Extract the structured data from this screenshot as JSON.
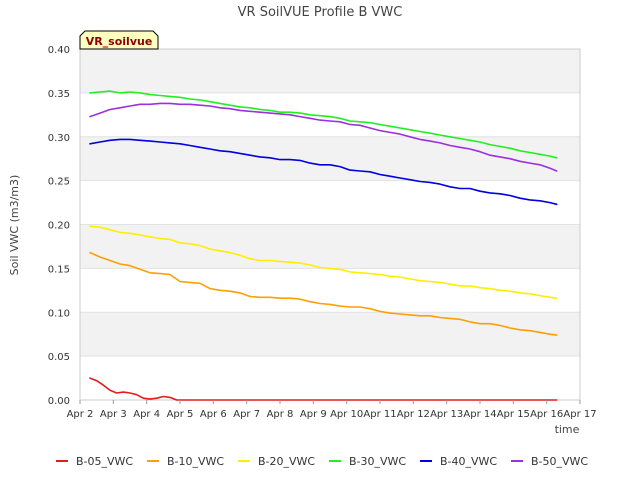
{
  "chart_data": {
    "type": "line",
    "title": "VR SoilVUE Profile B VWC",
    "xlabel": "time",
    "ylabel": "Soil VWC (m3/m3)",
    "badge": "VR_soilvue",
    "badge_bg": "#ffffc0",
    "badge_fg": "#8b0000",
    "x_tick_labels": [
      "Apr 2",
      "Apr 3",
      "Apr 4",
      "Apr 5",
      "Apr 6",
      "Apr 7",
      "Apr 8",
      "Apr 9",
      "Apr 10",
      "Apr 11",
      "Apr 12",
      "Apr 13",
      "Apr 14",
      "Apr 15",
      "Apr 16",
      "Apr 17"
    ],
    "xlim": [
      2,
      17
    ],
    "ylim": [
      0,
      0.4
    ],
    "y_ticks": [
      0.0,
      0.05,
      0.1,
      0.15,
      0.2,
      0.25,
      0.3,
      0.35,
      0.4
    ],
    "y_tick_labels": [
      "0.00",
      "0.05",
      "0.10",
      "0.15",
      "0.20",
      "0.25",
      "0.30",
      "0.35",
      "0.40"
    ],
    "grid": true,
    "legend_position": "bottom",
    "series": [
      {
        "name": "B-05_VWC",
        "color": "#e41a1c",
        "x": [
          2.3,
          2.5,
          2.7,
          2.9,
          3.1,
          3.3,
          3.5,
          3.7,
          3.9,
          4.1,
          4.3,
          4.5,
          4.7,
          4.9,
          5.1,
          5.3,
          5.5,
          5.7,
          6,
          8,
          10,
          12,
          14,
          16.3
        ],
        "y": [
          0.025,
          0.022,
          0.017,
          0.011,
          0.008,
          0.009,
          0.008,
          0.006,
          0.002,
          0.001,
          0.002,
          0.004,
          0.003,
          0.0,
          0,
          0,
          0,
          0,
          0,
          0,
          0,
          0,
          0,
          0
        ]
      },
      {
        "name": "B-10_VWC",
        "color": "#ff9f00",
        "x": [
          2.3,
          2.6,
          2.9,
          3.2,
          3.5,
          3.8,
          4.1,
          4.4,
          4.7,
          5.0,
          5.3,
          5.6,
          5.9,
          6.2,
          6.5,
          6.8,
          7.1,
          7.4,
          7.7,
          8.0,
          8.3,
          8.6,
          8.9,
          9.2,
          9.5,
          9.8,
          10.1,
          10.4,
          10.7,
          11.0,
          11.3,
          11.6,
          11.9,
          12.2,
          12.5,
          12.8,
          13.1,
          13.4,
          13.7,
          14.0,
          14.3,
          14.6,
          14.9,
          15.2,
          15.5,
          15.8,
          16.1,
          16.3
        ],
        "y": [
          0.168,
          0.163,
          0.159,
          0.155,
          0.153,
          0.149,
          0.145,
          0.144,
          0.143,
          0.135,
          0.134,
          0.133,
          0.127,
          0.125,
          0.124,
          0.122,
          0.118,
          0.117,
          0.117,
          0.116,
          0.116,
          0.115,
          0.112,
          0.11,
          0.109,
          0.107,
          0.106,
          0.106,
          0.104,
          0.101,
          0.099,
          0.098,
          0.097,
          0.096,
          0.096,
          0.094,
          0.093,
          0.092,
          0.089,
          0.087,
          0.087,
          0.085,
          0.082,
          0.08,
          0.079,
          0.077,
          0.075,
          0.074
        ]
      },
      {
        "name": "B-20_VWC",
        "color": "#ffee00",
        "x": [
          2.3,
          2.6,
          2.9,
          3.2,
          3.5,
          3.8,
          4.1,
          4.4,
          4.7,
          5.0,
          5.3,
          5.6,
          5.9,
          6.2,
          6.5,
          6.8,
          7.1,
          7.4,
          7.7,
          8.0,
          8.3,
          8.6,
          8.9,
          9.2,
          9.5,
          9.8,
          10.1,
          10.4,
          10.7,
          11.0,
          11.3,
          11.6,
          11.9,
          12.2,
          12.5,
          12.8,
          13.1,
          13.4,
          13.7,
          14.0,
          14.3,
          14.6,
          14.9,
          15.2,
          15.5,
          15.8,
          16.1,
          16.3
        ],
        "y": [
          0.198,
          0.197,
          0.194,
          0.191,
          0.19,
          0.188,
          0.186,
          0.184,
          0.183,
          0.179,
          0.178,
          0.176,
          0.172,
          0.17,
          0.168,
          0.165,
          0.161,
          0.159,
          0.159,
          0.158,
          0.157,
          0.156,
          0.154,
          0.151,
          0.15,
          0.149,
          0.146,
          0.145,
          0.144,
          0.143,
          0.141,
          0.14,
          0.138,
          0.136,
          0.135,
          0.134,
          0.132,
          0.13,
          0.13,
          0.128,
          0.127,
          0.125,
          0.124,
          0.122,
          0.121,
          0.119,
          0.117,
          0.116
        ]
      },
      {
        "name": "B-30_VWC",
        "color": "#22ee22",
        "x": [
          2.3,
          2.6,
          2.9,
          3.2,
          3.5,
          3.8,
          4.1,
          4.4,
          4.7,
          5.0,
          5.3,
          5.6,
          5.9,
          6.2,
          6.5,
          6.8,
          7.1,
          7.4,
          7.7,
          8.0,
          8.3,
          8.6,
          8.9,
          9.2,
          9.5,
          9.8,
          10.1,
          10.4,
          10.7,
          11.0,
          11.3,
          11.6,
          11.9,
          12.2,
          12.5,
          12.8,
          13.1,
          13.4,
          13.7,
          14.0,
          14.3,
          14.6,
          14.9,
          15.2,
          15.5,
          15.8,
          16.1,
          16.3
        ],
        "y": [
          0.35,
          0.351,
          0.352,
          0.35,
          0.351,
          0.35,
          0.348,
          0.347,
          0.346,
          0.345,
          0.343,
          0.342,
          0.34,
          0.338,
          0.336,
          0.334,
          0.333,
          0.331,
          0.33,
          0.328,
          0.328,
          0.327,
          0.325,
          0.324,
          0.323,
          0.321,
          0.318,
          0.317,
          0.316,
          0.314,
          0.312,
          0.31,
          0.308,
          0.306,
          0.304,
          0.302,
          0.3,
          0.298,
          0.296,
          0.294,
          0.291,
          0.289,
          0.287,
          0.284,
          0.282,
          0.28,
          0.278,
          0.276
        ]
      },
      {
        "name": "B-40_VWC",
        "color": "#0000dd",
        "x": [
          2.3,
          2.6,
          2.9,
          3.2,
          3.5,
          3.8,
          4.1,
          4.4,
          4.7,
          5.0,
          5.3,
          5.6,
          5.9,
          6.2,
          6.5,
          6.8,
          7.1,
          7.4,
          7.7,
          8.0,
          8.3,
          8.6,
          8.9,
          9.2,
          9.5,
          9.8,
          10.1,
          10.4,
          10.7,
          11.0,
          11.3,
          11.6,
          11.9,
          12.2,
          12.5,
          12.8,
          13.1,
          13.4,
          13.7,
          14.0,
          14.3,
          14.6,
          14.9,
          15.2,
          15.5,
          15.8,
          16.1,
          16.3
        ],
        "y": [
          0.292,
          0.294,
          0.296,
          0.297,
          0.297,
          0.296,
          0.295,
          0.294,
          0.293,
          0.292,
          0.29,
          0.288,
          0.286,
          0.284,
          0.283,
          0.281,
          0.279,
          0.277,
          0.276,
          0.274,
          0.274,
          0.273,
          0.27,
          0.268,
          0.268,
          0.266,
          0.262,
          0.261,
          0.26,
          0.257,
          0.255,
          0.253,
          0.251,
          0.249,
          0.248,
          0.246,
          0.243,
          0.241,
          0.241,
          0.238,
          0.236,
          0.235,
          0.233,
          0.23,
          0.228,
          0.227,
          0.225,
          0.223
        ]
      },
      {
        "name": "B-50_VWC",
        "color": "#9b30e0",
        "x": [
          2.3,
          2.6,
          2.9,
          3.2,
          3.5,
          3.8,
          4.1,
          4.4,
          4.7,
          5.0,
          5.3,
          5.6,
          5.9,
          6.2,
          6.5,
          6.8,
          7.1,
          7.4,
          7.7,
          8.0,
          8.3,
          8.6,
          8.9,
          9.2,
          9.5,
          9.8,
          10.1,
          10.4,
          10.7,
          11.0,
          11.3,
          11.6,
          11.9,
          12.2,
          12.5,
          12.8,
          13.1,
          13.4,
          13.7,
          14.0,
          14.3,
          14.6,
          14.9,
          15.2,
          15.5,
          15.8,
          16.1,
          16.3
        ],
        "y": [
          0.323,
          0.327,
          0.331,
          0.333,
          0.335,
          0.337,
          0.337,
          0.338,
          0.338,
          0.337,
          0.337,
          0.336,
          0.335,
          0.333,
          0.332,
          0.33,
          0.329,
          0.328,
          0.327,
          0.326,
          0.325,
          0.323,
          0.321,
          0.319,
          0.318,
          0.317,
          0.314,
          0.313,
          0.31,
          0.307,
          0.305,
          0.303,
          0.3,
          0.297,
          0.295,
          0.293,
          0.29,
          0.288,
          0.286,
          0.283,
          0.279,
          0.277,
          0.275,
          0.272,
          0.27,
          0.268,
          0.264,
          0.261
        ]
      }
    ]
  }
}
